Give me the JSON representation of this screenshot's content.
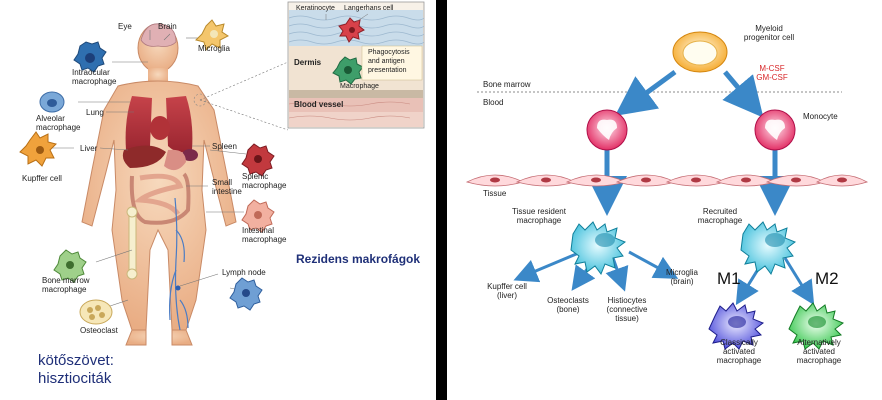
{
  "left_panel": {
    "body_labels": {
      "eye": "Eye",
      "brain": "Brain",
      "microglia": "Microglia",
      "intraocular": "Intraocular\nmacrophage",
      "alveolar": "Alveolar\nmacrophage",
      "lung": "Lung",
      "liver": "Liver",
      "kupffer": "Kupffer cell",
      "spleen": "Spleen",
      "splenic": "Splenic\nmacrophage",
      "small_intestine": "Small\nintestine",
      "intestinal": "Intestinal\nmacrophage",
      "bone_marrow": "Bone marrow\nmacrophage",
      "lymph_node": "Lymph node",
      "osteoclast": "Osteoclast"
    },
    "inset": {
      "keratinocyte": "Keratinocyte",
      "langerhans": "Langerhans cell",
      "phagocytosis": "Phagocytosis\nand antigen\npresentation",
      "dermis": "Dermis",
      "macrophage": "Macrophage",
      "blood_vessel": "Blood vessel"
    },
    "rezidens": "Rezidens\nmakrofágok",
    "histiocytes_caption": "kötőszövet:\nhisztiociták"
  },
  "right_panel": {
    "myeloid": "Myeloid\nprogenitor cell",
    "factors": "M-CSF\nGM-CSF",
    "bone_marrow": "Bone marrow",
    "blood": "Blood",
    "monocyte": "Monocyte",
    "tissue": "Tissue",
    "tissue_resident": "Tissue resident\nmacrophage",
    "recruited": "Recruited\nmacrophage",
    "kupffer": "Kupffer cell\n(liver)",
    "osteoclasts": "Osteoclasts\n(bone)",
    "histiocytes": "Histiocytes\n(connective\ntissue)",
    "microglia": "Microglia\n(brain)",
    "m1": "M1",
    "m2": "M2",
    "classical": "Classically\nactivated\nmacrophage",
    "alternative": "Alternatively\nactivated\nmacrophage"
  },
  "colors": {
    "factor_red": "#d8282a",
    "accent_blue": "#1f2f78",
    "skin": "#f2c9a6"
  }
}
